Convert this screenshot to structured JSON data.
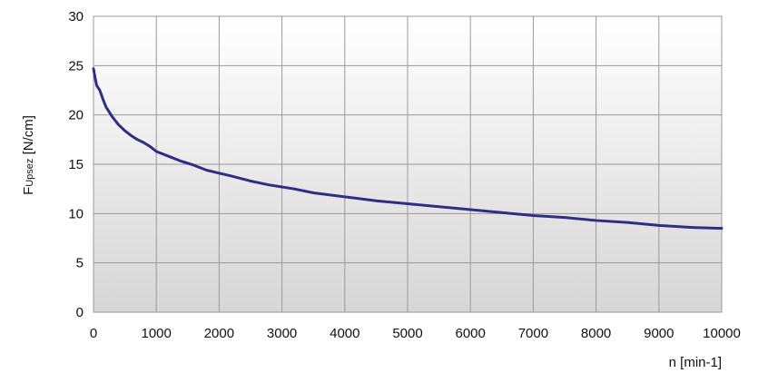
{
  "chart_data": {
    "type": "line",
    "title": "",
    "xlabel": "n [min-1]",
    "ylabel": {
      "main": "F",
      "sub": "Upsez",
      "unit": " [N/cm]"
    },
    "xlim": [
      0,
      10000
    ],
    "ylim": [
      0,
      30
    ],
    "xticks": [
      0,
      1000,
      2000,
      3000,
      4000,
      5000,
      6000,
      7000,
      8000,
      9000,
      10000
    ],
    "yticks": [
      0,
      5,
      10,
      15,
      20,
      25,
      30
    ],
    "grid": true,
    "legend": "none",
    "colors": {
      "line": "#2e2e86",
      "grid": "#9a9a9a",
      "plot_top": "#ffffff",
      "plot_bottom": "#d6d6d6"
    },
    "series": [
      {
        "x": [
          0,
          25,
          50,
          100,
          150,
          200,
          300,
          400,
          500,
          600,
          700,
          800,
          900,
          1000,
          1200,
          1400,
          1600,
          1800,
          2000,
          2200,
          2500,
          2800,
          3000,
          3200,
          3500,
          4000,
          4500,
          5000,
          5500,
          6000,
          6500,
          7000,
          7500,
          8000,
          8500,
          9000,
          9500,
          10000
        ],
        "y": [
          24.7,
          23.8,
          23.0,
          22.5,
          21.6,
          20.8,
          19.8,
          19.0,
          18.4,
          17.9,
          17.5,
          17.2,
          16.8,
          16.3,
          15.8,
          15.3,
          14.9,
          14.4,
          14.1,
          13.8,
          13.3,
          12.9,
          12.7,
          12.5,
          12.1,
          11.7,
          11.3,
          11.0,
          10.7,
          10.4,
          10.1,
          9.8,
          9.6,
          9.3,
          9.1,
          8.8,
          8.6,
          8.5
        ]
      }
    ]
  }
}
